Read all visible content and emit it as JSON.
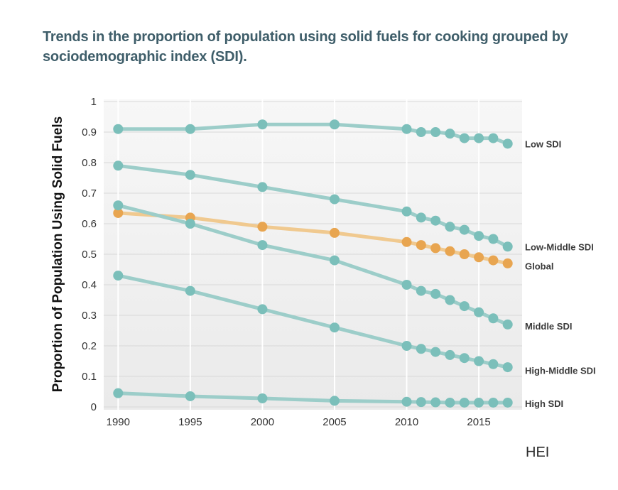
{
  "page": {
    "title": "Trends in the proportion of population using solid fuels for cooking grouped by sociodemographic index (SDI).",
    "credit": "HEI"
  },
  "colors": {
    "series": "#7bbfba",
    "series_line": "#9ccdc9",
    "global_marker": "#e8a550",
    "global_line": "#f0c98f",
    "plot_bg_top": "#f7f7f7",
    "plot_bg_bottom": "#eaeaea",
    "grid": "#d8d8d8"
  },
  "chart_data": {
    "type": "line",
    "title": "Trends in the proportion of population using solid fuels for cooking grouped by sociodemographic index (SDI).",
    "xlabel": "",
    "ylabel": "Proportion of Population Using Solid Fuels",
    "xlim": [
      1989,
      2018
    ],
    "ylim": [
      0,
      1
    ],
    "x_ticks": [
      1990,
      1995,
      2000,
      2005,
      2010,
      2015
    ],
    "y_ticks": [
      0,
      0.1,
      0.2,
      0.3,
      0.4,
      0.5,
      0.6,
      0.7,
      0.8,
      0.9,
      1
    ],
    "grid": true,
    "x": [
      1990,
      1995,
      2000,
      2005,
      2010,
      2011,
      2012,
      2013,
      2014,
      2015,
      2016,
      2017
    ],
    "series": [
      {
        "name": "Low SDI",
        "color": "series",
        "values": [
          0.91,
          0.91,
          0.925,
          0.925,
          0.91,
          0.9,
          0.9,
          0.895,
          0.88,
          0.88,
          0.88,
          0.862
        ]
      },
      {
        "name": "Low-Middle SDI",
        "color": "series",
        "values": [
          0.79,
          0.76,
          0.72,
          0.68,
          0.64,
          0.62,
          0.61,
          0.59,
          0.58,
          0.56,
          0.55,
          0.525
        ]
      },
      {
        "name": "Global",
        "color": "global",
        "values": [
          0.635,
          0.62,
          0.59,
          0.57,
          0.54,
          0.53,
          0.52,
          0.51,
          0.5,
          0.49,
          0.48,
          0.47
        ]
      },
      {
        "name": "Middle SDI",
        "color": "series",
        "values": [
          0.66,
          0.6,
          0.53,
          0.48,
          0.4,
          0.38,
          0.37,
          0.35,
          0.33,
          0.31,
          0.29,
          0.27
        ]
      },
      {
        "name": "High-Middle SDI",
        "color": "series",
        "values": [
          0.43,
          0.38,
          0.32,
          0.26,
          0.2,
          0.19,
          0.18,
          0.17,
          0.16,
          0.15,
          0.14,
          0.13
        ]
      },
      {
        "name": "High SDI",
        "color": "series",
        "values": [
          0.045,
          0.035,
          0.028,
          0.02,
          0.017,
          0.016,
          0.015,
          0.014,
          0.014,
          0.014,
          0.014,
          0.014
        ]
      }
    ],
    "series_labels": [
      {
        "text": "Low SDI",
        "y": 0.862
      },
      {
        "text": "Low-Middle SDI",
        "y": 0.525
      },
      {
        "text": "Global",
        "y": 0.462
      },
      {
        "text": "Middle SDI",
        "y": 0.265
      },
      {
        "text": "High-Middle SDI",
        "y": 0.12
      },
      {
        "text": "High SDI",
        "y": 0.012
      }
    ]
  }
}
